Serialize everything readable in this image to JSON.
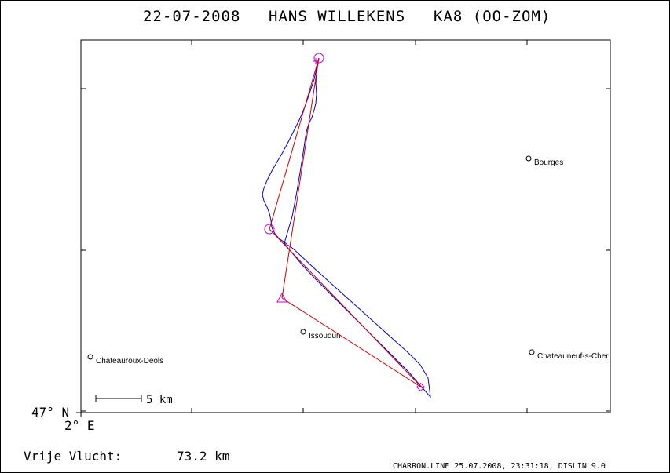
{
  "header": {
    "date": "22-07-2008",
    "pilot": "HANS WILLEKENS",
    "glider": "KA8 (OO-ZOM)"
  },
  "map": {
    "axis_lat_label": "47° N",
    "axis_lon_label": "2° E",
    "scale_label": "5 km",
    "track_color": "#0000cc",
    "task_color": "#cc0000",
    "turnpoint_color": "#cc00cc",
    "places": [
      {
        "name": "Bourges"
      },
      {
        "name": "Issoudun"
      },
      {
        "name": "Chateauroux-Deols"
      },
      {
        "name": "Chateauneuf-s-Cher"
      }
    ]
  },
  "summary": {
    "label": "Vrije Vlucht:",
    "distance": "73.2 km"
  },
  "footer": {
    "credit": "CHARRON.LINE 25.07.2008, 23:31:18, DISLIN 9.0"
  }
}
